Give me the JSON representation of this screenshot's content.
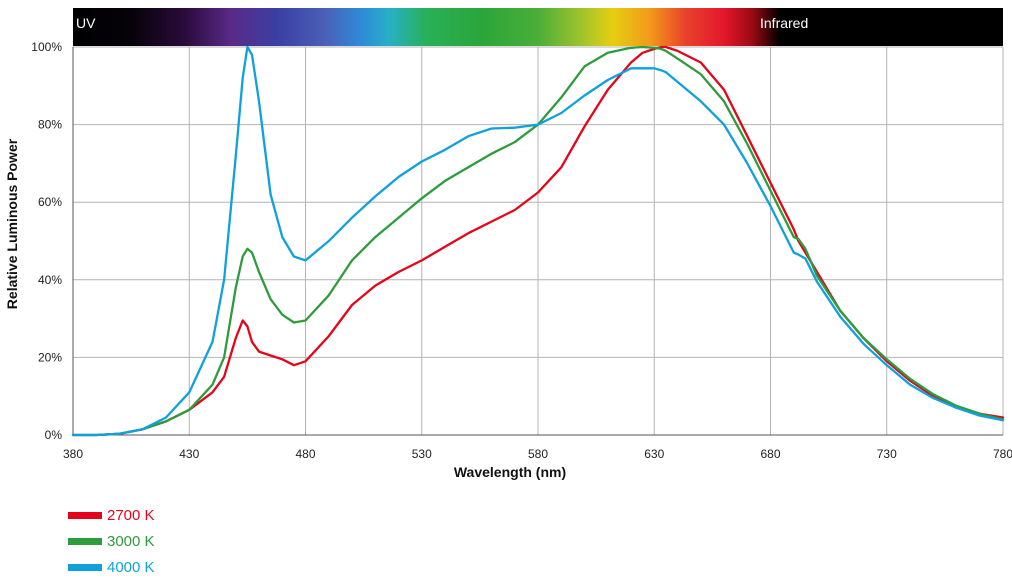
{
  "chart_data": {
    "type": "line",
    "title": "",
    "xlabel": "Wavelength (nm)",
    "ylabel": "Relative Luminous Power",
    "xlim": [
      380,
      780
    ],
    "ylim": [
      0,
      100
    ],
    "x_ticks": [
      "380",
      "430",
      "480",
      "530",
      "580",
      "630",
      "680",
      "730",
      "780"
    ],
    "y_ticks": [
      "0%",
      "20%",
      "40%",
      "60%",
      "80%",
      "100%"
    ],
    "grid": true,
    "legend_position": "bottom-left",
    "spectrum_band": {
      "left_label": "UV",
      "right_label": "Infrared"
    },
    "x": [
      380,
      390,
      400,
      410,
      420,
      430,
      440,
      445,
      450,
      453,
      455,
      457,
      460,
      465,
      470,
      475,
      480,
      490,
      500,
      510,
      520,
      530,
      540,
      550,
      560,
      570,
      580,
      590,
      600,
      610,
      620,
      625,
      630,
      633,
      635,
      640,
      650,
      660,
      670,
      680,
      690,
      692,
      695,
      700,
      710,
      720,
      730,
      740,
      750,
      760,
      770,
      780
    ],
    "series": [
      {
        "name": "2700 K",
        "color": "#e3051b",
        "values": [
          0,
          0,
          0.3,
          1.5,
          3.5,
          6.5,
          11,
          15,
          25,
          29.5,
          28,
          24,
          21.5,
          20.5,
          19.5,
          18,
          19,
          25.5,
          33.5,
          38.5,
          42,
          45,
          48.5,
          52,
          55,
          58,
          62.5,
          69,
          79.5,
          89,
          96,
          98.5,
          99.5,
          100,
          100,
          99,
          96,
          89,
          77,
          65,
          53,
          50,
          47,
          42,
          32,
          25,
          19,
          14,
          10,
          7,
          5.5,
          4.5
        ]
      },
      {
        "name": "3000 K",
        "color": "#2d9c3c",
        "values": [
          0,
          0,
          0.3,
          1.5,
          3.5,
          6.5,
          13,
          20,
          38,
          46,
          48,
          47,
          42,
          35,
          31,
          29,
          29.5,
          36,
          45,
          51,
          56,
          61,
          65.5,
          69,
          72.5,
          75.5,
          80,
          87,
          95,
          98.5,
          99.8,
          100,
          99.8,
          99.5,
          99,
          97,
          93,
          86,
          75,
          63,
          51,
          50.5,
          48,
          41,
          32,
          25,
          19.5,
          14.5,
          10.5,
          7.5,
          5.5,
          4
        ]
      },
      {
        "name": "4000 K",
        "color": "#0ea1dd",
        "values": [
          0,
          0,
          0.3,
          1.5,
          4.5,
          11,
          24,
          40,
          72,
          92,
          100,
          98,
          86,
          62,
          51,
          46,
          45,
          50,
          56,
          61.5,
          66.5,
          70.5,
          73.5,
          77,
          79,
          79.2,
          80,
          83,
          87.5,
          91.5,
          94.5,
          94.5,
          94.5,
          94,
          93.5,
          91,
          86,
          80,
          70,
          59,
          47,
          46.5,
          45.5,
          39.5,
          30.5,
          23.5,
          18,
          13,
          9.5,
          7,
          5,
          3.8
        ]
      }
    ]
  }
}
